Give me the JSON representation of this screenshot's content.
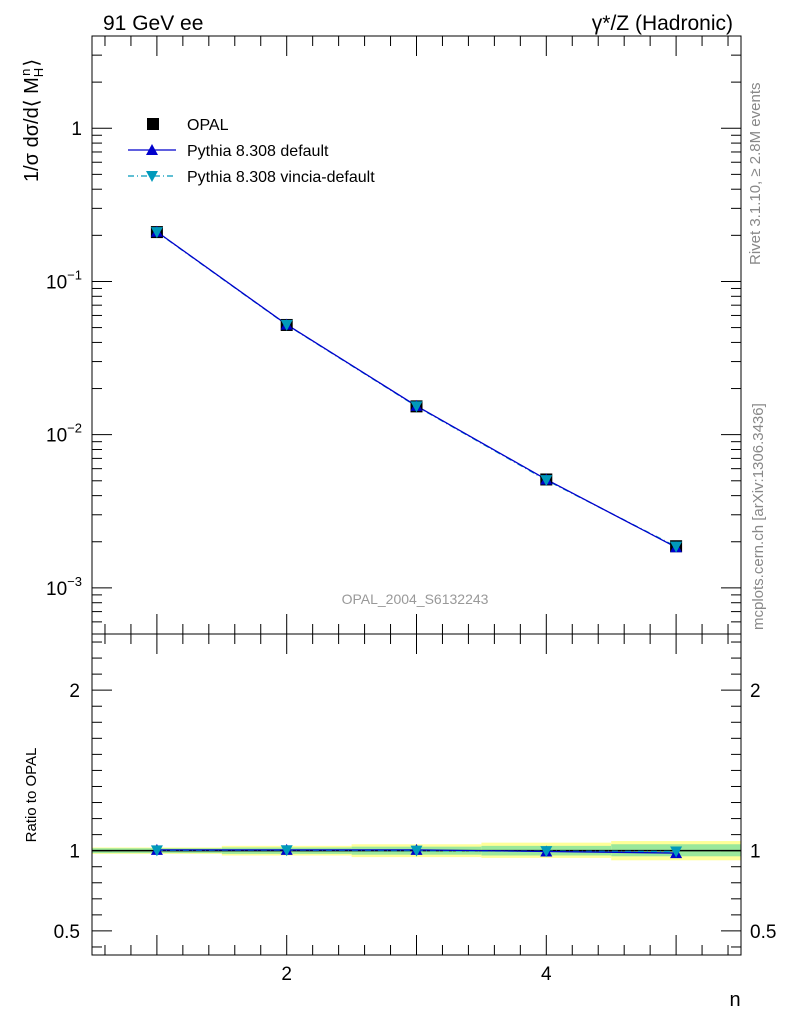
{
  "header": {
    "left": "91 GeV ee",
    "right": "γ*/Z (Hadronic)"
  },
  "side_labels": {
    "top": "Rivet 3.1.10, ≥ 2.8M events",
    "bottom": "mcplots.cern.ch [arXiv:1306.3436]"
  },
  "watermark": "OPAL_2004_S6132243",
  "colors": {
    "opal": "#000000",
    "pythia_default": "#0000cc",
    "pythia_vincia": "#0099bb",
    "band_inner": "#9be89b",
    "band_outer": "#ffff99"
  },
  "chart_data": [
    {
      "type": "line",
      "ylabel": "1/σ dσ/d⟨ M",
      "ylabel_sub": "H",
      "ylabel_sup": "n",
      "ylabel_close": "⟩",
      "yscale": "log",
      "xlim": [
        0.5,
        5.5
      ],
      "ylim": [
        0.0005,
        4
      ],
      "yticks": [
        {
          "value": 1,
          "base": "1",
          "exp": ""
        },
        {
          "value": 0.1,
          "base": "10",
          "exp": "−1"
        },
        {
          "value": 0.01,
          "base": "10",
          "exp": "−2"
        },
        {
          "value": 0.001,
          "base": "10",
          "exp": "−3"
        }
      ],
      "x": [
        1,
        2,
        3,
        4,
        5
      ],
      "series": [
        {
          "name": "OPAL",
          "values": [
            0.21,
            0.052,
            0.0153,
            0.0051,
            0.00187
          ]
        },
        {
          "name": "Pythia 8.308 default",
          "values": [
            0.211,
            0.0523,
            0.0154,
            0.0051,
            0.00184
          ]
        },
        {
          "name": "Pythia 8.308 vincia-default",
          "values": [
            0.21,
            0.0521,
            0.0153,
            0.00505,
            0.00186
          ]
        }
      ],
      "legend_position": "top-left"
    },
    {
      "type": "line",
      "ylabel": "Ratio to OPAL",
      "xlabel": "n",
      "ylim": [
        0.35,
        2.35
      ],
      "xticks": [
        {
          "value": 2,
          "label": "2"
        },
        {
          "value": 4,
          "label": "4"
        }
      ],
      "yticks": [
        {
          "value": 2,
          "label": "2"
        },
        {
          "value": 1,
          "label": "1"
        },
        {
          "value": 0.5,
          "label": "0.5"
        }
      ],
      "x": [
        1,
        2,
        3,
        4,
        5
      ],
      "bands": [
        {
          "x_range": [
            0.5,
            1.5
          ],
          "inner": [
            0.985,
            1.015
          ],
          "outer": [
            0.98,
            1.02
          ]
        },
        {
          "x_range": [
            1.5,
            2.5
          ],
          "inner": [
            0.98,
            1.02
          ],
          "outer": [
            0.97,
            1.03
          ]
        },
        {
          "x_range": [
            2.5,
            3.5
          ],
          "inner": [
            0.975,
            1.025
          ],
          "outer": [
            0.96,
            1.04
          ]
        },
        {
          "x_range": [
            3.5,
            4.5
          ],
          "inner": [
            0.97,
            1.03
          ],
          "outer": [
            0.955,
            1.05
          ]
        },
        {
          "x_range": [
            4.5,
            5.5
          ],
          "inner": [
            0.965,
            1.04
          ],
          "outer": [
            0.94,
            1.06
          ]
        }
      ],
      "series": [
        {
          "name": "Pythia 8.308 default",
          "values": [
            1.005,
            1.005,
            1.005,
            0.995,
            0.985
          ]
        },
        {
          "name": "Pythia 8.308 vincia-default",
          "values": [
            1.002,
            1.003,
            1.0,
            0.997,
            0.995
          ]
        }
      ]
    }
  ]
}
